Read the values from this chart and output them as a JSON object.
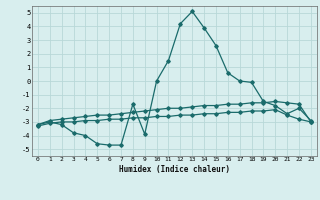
{
  "xlabel": "Humidex (Indice chaleur)",
  "background_color": "#d8eeee",
  "grid_color": "#b8d8d8",
  "line_color": "#1a6b6b",
  "x": [
    0,
    1,
    2,
    3,
    4,
    5,
    6,
    7,
    8,
    9,
    10,
    11,
    12,
    13,
    14,
    15,
    16,
    17,
    18,
    19,
    20,
    21,
    22,
    23
  ],
  "line1": [
    -3.2,
    -3.0,
    -3.2,
    -3.8,
    -4.0,
    -4.6,
    -4.7,
    -4.7,
    -1.7,
    -3.9,
    0.0,
    1.5,
    4.2,
    5.1,
    3.9,
    2.6,
    0.6,
    0.0,
    -0.1,
    -1.5,
    -1.8,
    -2.4,
    -2.0,
    -2.9
  ],
  "line2": [
    -3.2,
    -2.9,
    -2.8,
    -2.7,
    -2.6,
    -2.5,
    -2.5,
    -2.4,
    -2.3,
    -2.2,
    -2.1,
    -2.0,
    -2.0,
    -1.9,
    -1.8,
    -1.8,
    -1.7,
    -1.7,
    -1.6,
    -1.6,
    -1.5,
    -1.6,
    -1.7,
    -3.0
  ],
  "line3": [
    -3.3,
    -3.1,
    -3.0,
    -3.0,
    -2.9,
    -2.9,
    -2.8,
    -2.8,
    -2.7,
    -2.7,
    -2.6,
    -2.6,
    -2.5,
    -2.5,
    -2.4,
    -2.4,
    -2.3,
    -2.3,
    -2.2,
    -2.2,
    -2.1,
    -2.5,
    -2.8,
    -3.0
  ],
  "ylim": [
    -5.5,
    5.5
  ],
  "yticks": [
    -5,
    -4,
    -3,
    -2,
    -1,
    0,
    1,
    2,
    3,
    4,
    5
  ],
  "xlim": [
    -0.5,
    23.5
  ],
  "xticks": [
    0,
    1,
    2,
    3,
    4,
    5,
    6,
    7,
    8,
    9,
    10,
    11,
    12,
    13,
    14,
    15,
    16,
    17,
    18,
    19,
    20,
    21,
    22,
    23
  ]
}
